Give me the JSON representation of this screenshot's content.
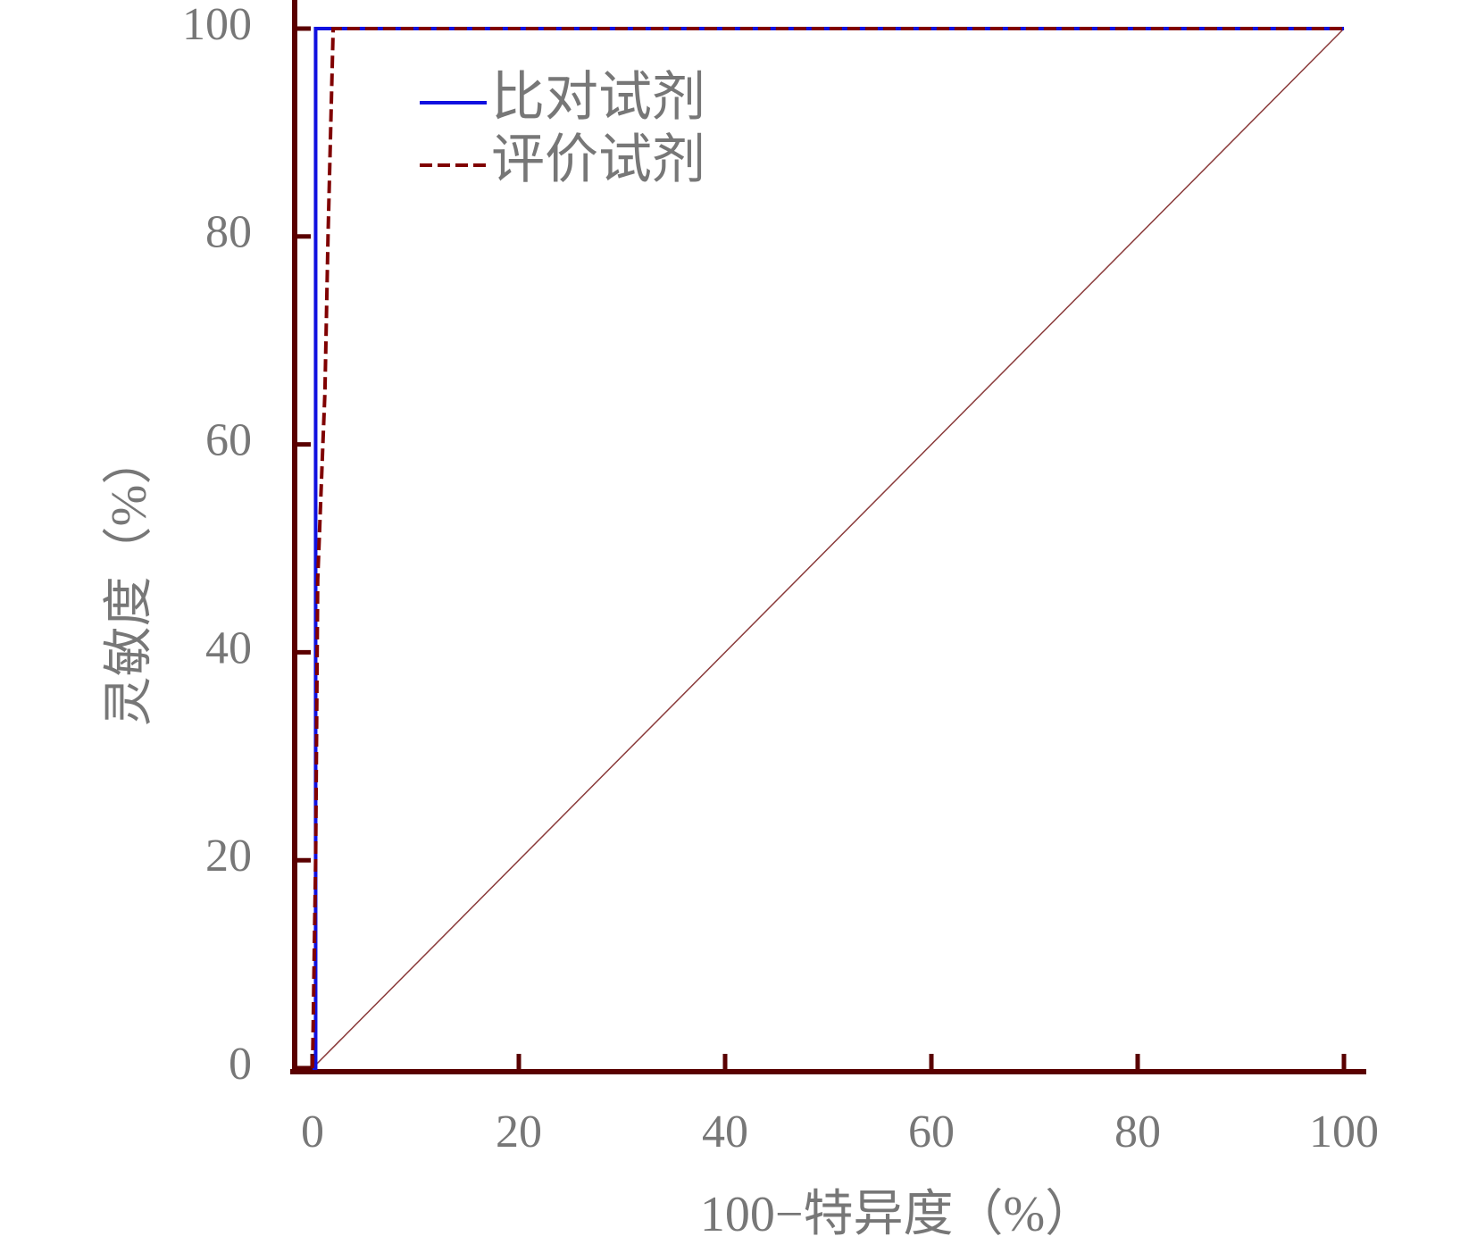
{
  "chart_data": {
    "type": "line",
    "x_label": "100−特异度（%）",
    "y_label": "灵敏度（%）",
    "xlim": [
      0,
      100
    ],
    "ylim": [
      0,
      100
    ],
    "xticks": [
      0,
      20,
      40,
      60,
      80,
      100
    ],
    "yticks": [
      0,
      20,
      40,
      60,
      80,
      100
    ],
    "legend": "upper-left",
    "diagonal": true,
    "series": [
      {
        "name": "比对试剂",
        "color": "#1010e0",
        "dash": false,
        "x": [
          0,
          0.3,
          0.3,
          100
        ],
        "values": [
          0,
          0,
          100,
          100
        ]
      },
      {
        "name": "评价试剂",
        "color": "#800000",
        "dash": true,
        "x": [
          0,
          0.3,
          0.5,
          1,
          1.2,
          1.5,
          1.8,
          2,
          100
        ],
        "values": [
          0,
          20,
          47,
          60,
          65,
          80,
          92,
          100,
          100
        ]
      }
    ]
  }
}
